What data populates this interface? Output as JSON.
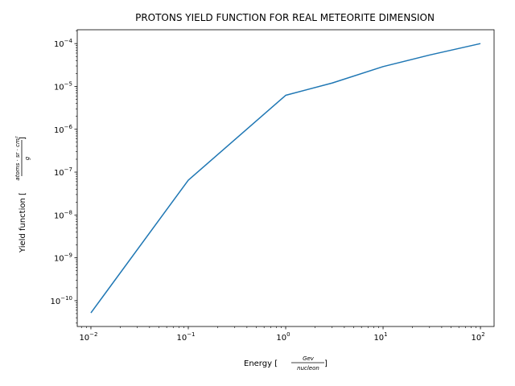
{
  "chart_data": {
    "type": "line",
    "title": "PROTONS YIELD FUNCTION FOR REAL METEORITE DIMENSION",
    "xlabel": {
      "prefix": "Energy [",
      "numerator": "Gev",
      "denominator": "nucleon",
      "suffix": "]"
    },
    "ylabel": {
      "prefix": "Yield function [",
      "numerator": "atoms · sr · cm²",
      "denominator": "g",
      "suffix": "]"
    },
    "xscale": "log",
    "yscale": "log",
    "xlim": [
      0.00724,
      138
    ],
    "ylim": [
      2.5e-11,
      0.00021
    ],
    "xticks": [
      {
        "value": 0.01,
        "base": "10",
        "exp": "−2"
      },
      {
        "value": 0.1,
        "base": "10",
        "exp": "−1"
      },
      {
        "value": 1,
        "base": "10",
        "exp": "0"
      },
      {
        "value": 10,
        "base": "10",
        "exp": "1"
      },
      {
        "value": 100,
        "base": "10",
        "exp": "2"
      }
    ],
    "yticks": [
      {
        "value": 1e-10,
        "base": "10",
        "exp": "−10"
      },
      {
        "value": 1e-09,
        "base": "10",
        "exp": "−9"
      },
      {
        "value": 1e-08,
        "base": "10",
        "exp": "−8"
      },
      {
        "value": 1e-07,
        "base": "10",
        "exp": "−7"
      },
      {
        "value": 1e-06,
        "base": "10",
        "exp": "−6"
      },
      {
        "value": 1e-05,
        "base": "10",
        "exp": "−5"
      },
      {
        "value": 0.0001,
        "base": "10",
        "exp": "−4"
      }
    ],
    "series": [
      {
        "color": "#1f77b4",
        "x": [
          0.01,
          0.1,
          1,
          3,
          10,
          30,
          100
        ],
        "y": [
          5.2e-11,
          6.5e-08,
          6.2e-06,
          1.2e-05,
          2.9e-05,
          5.4e-05,
          0.0001
        ]
      }
    ],
    "grid": false,
    "legend": "none"
  }
}
